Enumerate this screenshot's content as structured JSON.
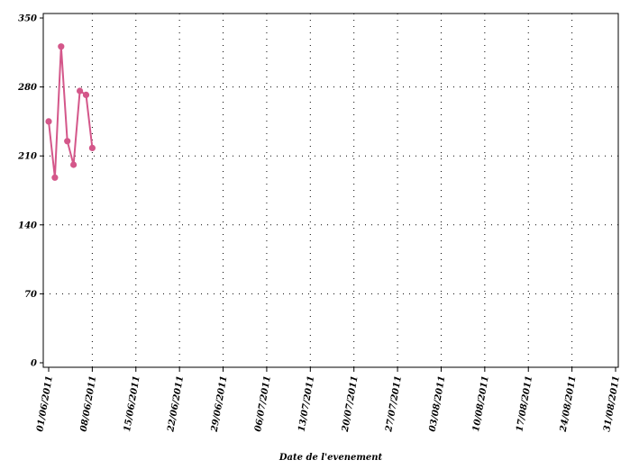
{
  "chart_data": {
    "type": "line",
    "title": "",
    "xlabel": "Date de l'evenement",
    "ylabel": "",
    "x_type": "date",
    "xlim": [
      "2011-06-01",
      "2011-08-31"
    ],
    "ylim": [
      0,
      350
    ],
    "grid": true,
    "legend": "none",
    "y_ticks": [
      0,
      70,
      140,
      210,
      280,
      350
    ],
    "y_tick_labels": [
      "0",
      "70",
      "140",
      "210",
      "280",
      "350"
    ],
    "x_ticks": [
      "2011-06-01",
      "2011-06-08",
      "2011-06-15",
      "2011-06-22",
      "2011-06-29",
      "2011-07-06",
      "2011-07-13",
      "2011-07-20",
      "2011-07-27",
      "2011-08-03",
      "2011-08-10",
      "2011-08-17",
      "2011-08-24",
      "2011-08-31"
    ],
    "x_tick_labels": [
      "01/06/2011",
      "08/06/2011",
      "15/06/2011",
      "22/06/2011",
      "29/06/2011",
      "06/07/2011",
      "13/07/2011",
      "20/07/2011",
      "27/07/2011",
      "03/08/2011",
      "10/08/2011",
      "17/08/2011",
      "24/08/2011",
      "31/08/2011"
    ],
    "series": [
      {
        "color": "#d4578a",
        "x": [
          "2011-06-01",
          "2011-06-02",
          "2011-06-03",
          "2011-06-04",
          "2011-06-05",
          "2011-06-06",
          "2011-06-07",
          "2011-06-08"
        ],
        "values": [
          245,
          188,
          321,
          225,
          201,
          276,
          272,
          218
        ]
      }
    ]
  }
}
